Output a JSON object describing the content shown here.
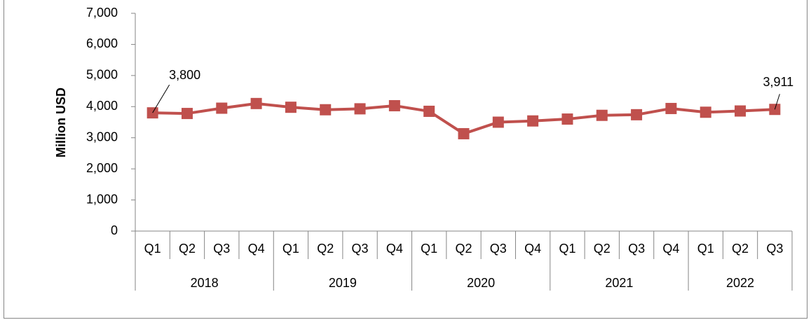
{
  "chart_data": {
    "type": "line",
    "y_label": "Million USD",
    "category_groups": [
      {
        "name": "2018",
        "categories": [
          "Q1",
          "Q2",
          "Q3",
          "Q4"
        ]
      },
      {
        "name": "2019",
        "categories": [
          "Q1",
          "Q2",
          "Q3",
          "Q4"
        ]
      },
      {
        "name": "2020",
        "categories": [
          "Q1",
          "Q2",
          "Q3",
          "Q4"
        ]
      },
      {
        "name": "2021",
        "categories": [
          "Q1",
          "Q2",
          "Q3",
          "Q4"
        ]
      },
      {
        "name": "2022",
        "categories": [
          "Q1",
          "Q2",
          "Q3"
        ]
      }
    ],
    "series": [
      {
        "color": "#c0504d",
        "values": [
          3800,
          3780,
          3950,
          4100,
          3980,
          3900,
          3930,
          4030,
          3850,
          3130,
          3500,
          3540,
          3600,
          3720,
          3740,
          3940,
          3820,
          3860,
          3911
        ],
        "value_labels": [
          "3,800",
          null,
          null,
          null,
          null,
          null,
          null,
          null,
          null,
          null,
          null,
          null,
          null,
          null,
          null,
          null,
          null,
          null,
          "3,911"
        ]
      }
    ],
    "ylim": [
      0,
      7000
    ],
    "yticks": [
      0,
      {
        "value": 1000,
        "label": "1,000"
      },
      {
        "value": 2000,
        "label": "2,000"
      },
      {
        "value": 3000,
        "label": "3,000"
      },
      {
        "value": 4000,
        "label": "4,000"
      },
      {
        "value": 5000,
        "label": "5,000"
      },
      {
        "value": 6000,
        "label": "6,000"
      },
      {
        "value": 7000,
        "label": "7,000"
      }
    ]
  }
}
